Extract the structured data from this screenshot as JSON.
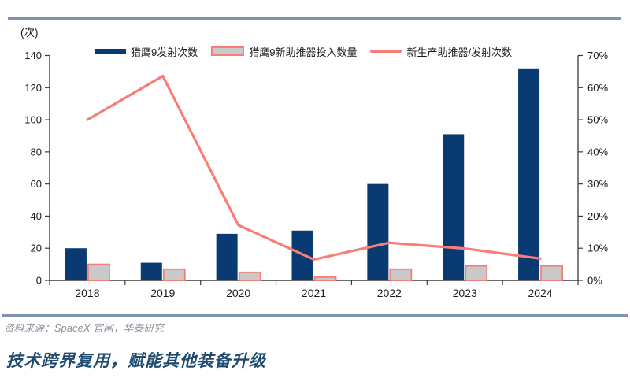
{
  "page_title": "技术跨界复用，赋能其他装备升级",
  "source_text": "资料来源：SpaceX 官网，华泰研究",
  "colors": {
    "bar_primary": "#0a3a72",
    "bar_secondary_fill": "#c9c9c9",
    "bar_secondary_border": "#f97d76",
    "accent_line": "#f97d76",
    "divider": "#7d93b0",
    "axis": "#3a3a3a",
    "tick_text": "#1a1a1a",
    "title_text": "#1f4a70",
    "source_text": "#878e99"
  },
  "chart_data": {
    "type": "bar",
    "subtype": "bar-line-combo",
    "unit_label": "(次)",
    "categories": [
      "2018",
      "2019",
      "2020",
      "2021",
      "2022",
      "2023",
      "2024"
    ],
    "series": [
      {
        "name": "猎鹰9发射次数",
        "type": "bar",
        "axis": "left",
        "values": [
          20,
          11,
          29,
          31,
          60,
          91,
          132
        ]
      },
      {
        "name": "猎鹰9新助推器投入数量",
        "type": "bar",
        "axis": "left",
        "values": [
          10,
          7,
          5,
          2,
          7,
          9,
          9
        ]
      },
      {
        "name": "新生产助推器/发射次数",
        "type": "line",
        "axis": "right",
        "values": [
          50.0,
          63.6,
          17.2,
          6.5,
          11.7,
          9.9,
          6.8
        ]
      }
    ],
    "left_axis": {
      "min": 0,
      "max": 140,
      "step": 20,
      "tick_labels": [
        "0",
        "20",
        "40",
        "60",
        "80",
        "100",
        "120",
        "140"
      ]
    },
    "right_axis": {
      "min": 0,
      "max": 70,
      "step": 10,
      "tick_labels": [
        "0%",
        "10%",
        "20%",
        "30%",
        "40%",
        "50%",
        "60%",
        "70%"
      ]
    },
    "legend_position": "top",
    "grid": false
  }
}
